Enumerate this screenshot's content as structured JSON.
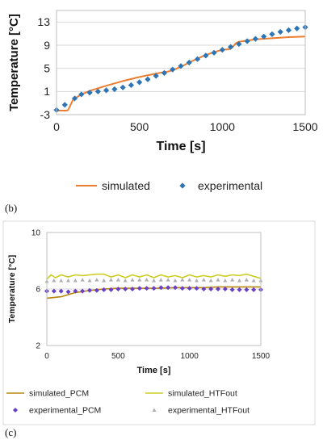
{
  "colors": {
    "orange": "#ED7D31",
    "blue": "#2E75B6",
    "brown": "#B8860B",
    "yellow": "#CCCC22",
    "purple": "#6A3FC8",
    "gray": "#B0B0B0"
  },
  "panel_labels": {
    "b": "(b)",
    "c": "(c)"
  },
  "chart_data": [
    {
      "type": "line",
      "xlabel": "Time [s]",
      "ylabel": "Temperature [°C]",
      "xlim": [
        0,
        1500
      ],
      "ylim": [
        -3,
        15
      ],
      "xticks": [
        "0",
        "500",
        "1000",
        "1500"
      ],
      "yticks": [
        "-3",
        "1",
        "5",
        "9",
        "13"
      ],
      "ytick_values": [
        -3,
        1,
        5,
        9,
        13
      ],
      "xtick_values": [
        0,
        500,
        1000,
        1500
      ],
      "grid": "horizontal",
      "legend": "bottom",
      "series": [
        {
          "name": "simulated",
          "style": "line",
          "color_key": "orange",
          "x": [
            0,
            60,
            70,
            80,
            100,
            150,
            200,
            300,
            400,
            500,
            600,
            680,
            700,
            720,
            760,
            800,
            850,
            900,
            950,
            1000,
            1040,
            1060,
            1080,
            1100,
            1150,
            1200,
            1300,
            1400,
            1500
          ],
          "y": [
            -2.3,
            -2.3,
            -2.2,
            -1.6,
            -0.4,
            0.5,
            1.1,
            2.0,
            2.8,
            3.5,
            4.1,
            4.5,
            4.7,
            4.9,
            5.4,
            6.0,
            6.7,
            7.3,
            7.8,
            8.2,
            8.3,
            8.6,
            9.3,
            9.6,
            9.8,
            10.0,
            10.2,
            10.4,
            10.5
          ]
        },
        {
          "name": "experimental",
          "style": "diamond",
          "color_key": "blue",
          "x": [
            0,
            50,
            110,
            150,
            200,
            250,
            300,
            350,
            400,
            450,
            500,
            550,
            600,
            650,
            700,
            750,
            800,
            850,
            900,
            950,
            1000,
            1050,
            1100,
            1150,
            1200,
            1250,
            1300,
            1350,
            1400,
            1450,
            1500
          ],
          "y": [
            -2.2,
            -1.3,
            -0.2,
            0.5,
            0.8,
            1.0,
            1.2,
            1.4,
            1.7,
            2.1,
            2.6,
            3.1,
            3.7,
            4.2,
            4.8,
            5.4,
            6.0,
            6.6,
            7.2,
            7.7,
            8.2,
            8.7,
            9.2,
            9.7,
            10.1,
            10.5,
            10.9,
            11.3,
            11.6,
            11.9,
            12.1
          ]
        }
      ]
    },
    {
      "type": "line",
      "xlabel": "Time [s]",
      "ylabel": "Temperature [°C]",
      "xlim": [
        0,
        1500
      ],
      "ylim": [
        2,
        10
      ],
      "xticks": [
        "0",
        "500",
        "1000",
        "1500"
      ],
      "yticks": [
        "2",
        "6",
        "10"
      ],
      "ytick_values": [
        2,
        6,
        10
      ],
      "xtick_values": [
        0,
        500,
        1000,
        1500
      ],
      "grid": "horizontal",
      "legend": "bottom",
      "series": [
        {
          "name": "simulated_PCM",
          "style": "line",
          "color_key": "brown",
          "x": [
            0,
            100,
            150,
            200,
            300,
            400,
            500,
            600,
            700,
            800,
            900,
            1000,
            1100,
            1200,
            1300,
            1400,
            1500
          ],
          "y": [
            5.35,
            5.45,
            5.6,
            5.75,
            5.9,
            6.0,
            6.05,
            6.05,
            6.05,
            6.05,
            6.1,
            6.1,
            6.1,
            6.15,
            6.15,
            6.15,
            6.15
          ]
        },
        {
          "name": "simulated_HTFout",
          "style": "line",
          "color_key": "yellow",
          "x": [
            0,
            30,
            60,
            100,
            150,
            200,
            250,
            300,
            350,
            400,
            450,
            500,
            550,
            600,
            650,
            700,
            750,
            800,
            850,
            900,
            950,
            1000,
            1050,
            1100,
            1150,
            1200,
            1250,
            1300,
            1350,
            1400,
            1450,
            1500
          ],
          "y": [
            6.7,
            7.0,
            6.8,
            7.0,
            6.85,
            7.0,
            6.95,
            7.0,
            7.05,
            7.05,
            6.85,
            7.0,
            6.8,
            7.0,
            6.85,
            7.0,
            6.8,
            7.0,
            6.85,
            6.95,
            6.8,
            7.0,
            6.85,
            6.95,
            6.85,
            7.0,
            6.9,
            7.0,
            6.95,
            7.05,
            6.9,
            6.75
          ]
        },
        {
          "name": "experimental_PCM",
          "style": "diamond",
          "color_key": "purple",
          "x": [
            0,
            50,
            100,
            150,
            200,
            250,
            300,
            350,
            400,
            450,
            500,
            550,
            600,
            650,
            700,
            750,
            800,
            850,
            900,
            950,
            1000,
            1050,
            1100,
            1150,
            1200,
            1250,
            1300,
            1350,
            1400,
            1450,
            1500
          ],
          "y": [
            5.85,
            5.85,
            5.85,
            5.8,
            5.85,
            5.85,
            5.9,
            5.9,
            5.95,
            5.95,
            6.0,
            6.0,
            6.0,
            6.05,
            6.05,
            6.05,
            6.1,
            6.1,
            6.1,
            6.05,
            6.05,
            6.05,
            6.0,
            6.0,
            6.0,
            6.0,
            5.95,
            5.95,
            5.95,
            5.95,
            5.95
          ]
        },
        {
          "name": "experimental_HTFout",
          "style": "triangle",
          "color_key": "gray",
          "x": [
            0,
            50,
            100,
            150,
            200,
            250,
            300,
            350,
            400,
            450,
            500,
            550,
            600,
            650,
            700,
            750,
            800,
            850,
            900,
            950,
            1000,
            1050,
            1100,
            1150,
            1200,
            1250,
            1300,
            1350,
            1400,
            1450,
            1500
          ],
          "y": [
            6.55,
            6.6,
            6.6,
            6.6,
            6.6,
            6.65,
            6.6,
            6.65,
            6.6,
            6.65,
            6.65,
            6.6,
            6.65,
            6.65,
            6.65,
            6.6,
            6.65,
            6.65,
            6.6,
            6.65,
            6.65,
            6.6,
            6.65,
            6.6,
            6.65,
            6.6,
            6.65,
            6.6,
            6.65,
            6.6,
            6.6
          ]
        }
      ]
    }
  ]
}
